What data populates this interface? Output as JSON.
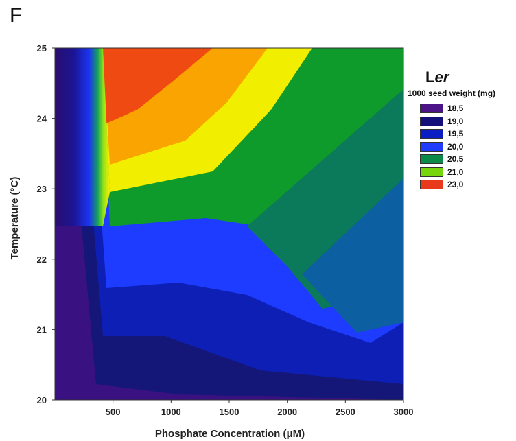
{
  "panel_label": "F",
  "chart_data": {
    "type": "heatmap",
    "xlabel": "Phosphate Concentration (μM)",
    "ylabel": "Temperature (°C)",
    "xlim": [
      0,
      3000
    ],
    "ylim": [
      20,
      25
    ],
    "x_ticks": [
      500,
      1000,
      1500,
      2000,
      2500,
      3000
    ],
    "y_ticks": [
      20,
      21,
      22,
      23,
      24,
      25
    ],
    "legend": {
      "title_plain": "L",
      "title_italic": "er",
      "subtitle": "1000 seed weight (mg)",
      "placement": "right",
      "levels": [
        {
          "label": "18,5",
          "color": "#4b1487"
        },
        {
          "label": "19,0",
          "color": "#14127a"
        },
        {
          "label": "19,5",
          "color": "#0a1ec4"
        },
        {
          "label": "20,0",
          "color": "#1f3cff"
        },
        {
          "label": "20,5",
          "color": "#0c8a4a"
        },
        {
          "label": "21,0",
          "color": "#77d50e"
        },
        {
          "label": "23,0",
          "color": "#e8391c"
        }
      ]
    },
    "grid": false
  }
}
